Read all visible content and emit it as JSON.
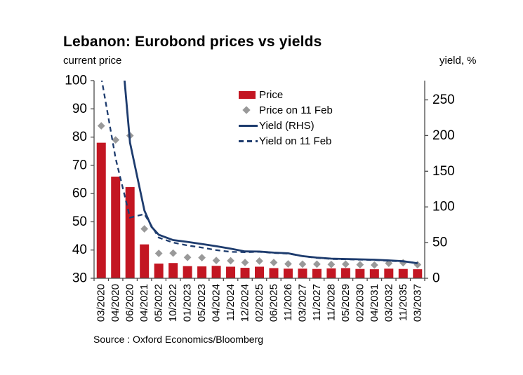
{
  "title": "Lebanon: Eurobond prices vs yields",
  "source": "Source : Oxford Economics/Bloomberg",
  "colors": {
    "bar_red": "#c31622",
    "navy": "#1e3c6e",
    "diamond_gray": "#999999",
    "axis_line": "#4a4a4a",
    "text": "#000000"
  },
  "legend": {
    "items": [
      {
        "label": "Price",
        "swatch": "bar"
      },
      {
        "label": "Price on 11 Feb",
        "swatch": "diamond"
      },
      {
        "label": "Yield (RHS)",
        "swatch": "line-solid"
      },
      {
        "label": "Yield on 11 Feb",
        "swatch": "line-dashed"
      }
    ]
  },
  "chart_data": {
    "type": "bar",
    "title": "Lebanon: Eurobond prices vs yields",
    "categories": [
      "03/2020",
      "04/2020",
      "06/2020",
      "04/2021",
      "05/2022",
      "10/2022",
      "01/2023",
      "05/2023",
      "04/2024",
      "11/2024",
      "12/2024",
      "02/2025",
      "06/2025",
      "11/2026",
      "03/2027",
      "11/2027",
      "11/2028",
      "05/2029",
      "02/2030",
      "04/2031",
      "03/2032",
      "11/2035",
      "03/2037"
    ],
    "left_axis": {
      "label": "current price",
      "min": 30,
      "max": 100,
      "ticks": [
        30,
        40,
        50,
        60,
        70,
        80,
        90,
        100
      ]
    },
    "right_axis": {
      "label": "yield, %",
      "min": 0,
      "max": 277,
      "ticks": [
        0,
        50,
        100,
        150,
        200,
        250
      ]
    },
    "grid": false,
    "legend_position": "upper-center-inside",
    "series": [
      {
        "name": "Price",
        "type": "bar",
        "axis": "left",
        "color": "#c31622",
        "values": [
          78,
          66,
          62.3,
          42,
          35.2,
          35.4,
          34.3,
          34.2,
          34.4,
          34.1,
          33.7,
          34.1,
          33.6,
          33.4,
          33.4,
          33.3,
          33.5,
          33.6,
          33.3,
          33.2,
          33.4,
          33.3,
          33.2
        ]
      },
      {
        "name": "Price on 11 Feb",
        "type": "scatter",
        "marker": "diamond",
        "axis": "left",
        "color": "#999999",
        "values": [
          84,
          79,
          80.5,
          47.5,
          38.8,
          38.9,
          37.4,
          37.3,
          36.3,
          36.2,
          35.6,
          36.1,
          35.6,
          35.1,
          35,
          35,
          34.9,
          35,
          34.8,
          34.7,
          35.3,
          35.5,
          34.8
        ]
      },
      {
        "name": "Yield (RHS)",
        "type": "line",
        "dashed": false,
        "axis": "right",
        "color": "#1e3c6e",
        "points": [
          [
            1,
            600
          ],
          [
            2,
            420
          ],
          [
            3,
            190
          ],
          [
            4,
            95
          ],
          [
            4.5,
            72
          ],
          [
            5,
            61
          ],
          [
            6,
            53.5
          ],
          [
            7,
            51
          ],
          [
            8,
            48
          ],
          [
            9,
            45
          ],
          [
            10,
            41.5
          ],
          [
            11,
            37.6
          ],
          [
            12,
            37.4
          ],
          [
            13,
            36
          ],
          [
            14,
            35
          ],
          [
            15,
            31
          ],
          [
            16,
            29
          ],
          [
            17,
            27.5
          ],
          [
            18,
            27
          ],
          [
            19,
            26.5
          ],
          [
            20,
            26
          ],
          [
            21,
            25
          ],
          [
            22,
            24
          ],
          [
            23,
            21
          ]
        ]
      },
      {
        "name": "Yield on 11 Feb",
        "type": "line",
        "dashed": true,
        "axis": "right",
        "color": "#1e3c6e",
        "points": [
          [
            1,
            282
          ],
          [
            2,
            168
          ],
          [
            3,
            85
          ],
          [
            4,
            90
          ],
          [
            5,
            57
          ],
          [
            6,
            50
          ],
          [
            7,
            46
          ],
          [
            8,
            43
          ],
          [
            9,
            39.5
          ],
          [
            10,
            37
          ],
          [
            11,
            36.5
          ],
          [
            12,
            37
          ],
          [
            13,
            35.5
          ],
          [
            14,
            34.5
          ],
          [
            15,
            31
          ],
          [
            16,
            28.5
          ],
          [
            17,
            27
          ],
          [
            18,
            26.5
          ],
          [
            19,
            26
          ],
          [
            20,
            25.5
          ],
          [
            21,
            24.5
          ],
          [
            22,
            23.5
          ],
          [
            23,
            21.5
          ]
        ]
      }
    ]
  }
}
